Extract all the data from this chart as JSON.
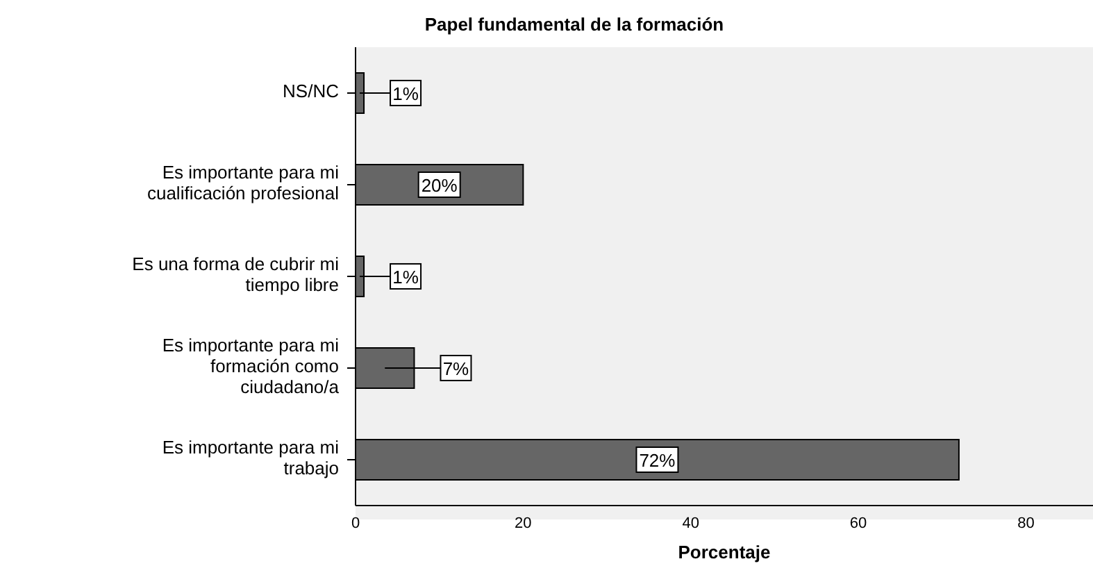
{
  "chart_data": {
    "type": "bar",
    "orientation": "horizontal",
    "title": "Papel fundamental de la formación",
    "xlabel": "Porcentaje",
    "categories": [
      "NS/NC",
      "Es importante para mi cualificación profesional",
      "Es una forma de cubrir mi tiempo libre",
      "Es importante para mi formación como ciudadano/a",
      "Es importante para mi trabajo"
    ],
    "values": [
      1,
      20,
      1,
      7,
      72
    ],
    "value_labels": [
      "1%",
      "20%",
      "1%",
      "7%",
      "72%"
    ],
    "color": "#666666",
    "xlim": [
      0,
      88
    ],
    "xticks": [
      0,
      20,
      40,
      60,
      80
    ]
  }
}
